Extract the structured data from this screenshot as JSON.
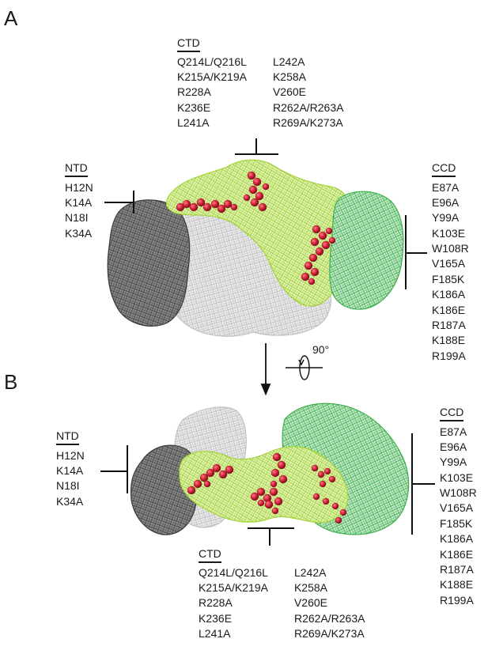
{
  "panels": {
    "A": {
      "letter": "A",
      "ctd": {
        "heading": "CTD",
        "col1": [
          "Q214L/Q216L",
          "K215A/K219A",
          "R228A",
          "K236E",
          "L241A"
        ],
        "col2": [
          "L242A",
          "K258A",
          "V260E",
          "R262A/R263A",
          "R269A/K273A"
        ]
      },
      "ntd": {
        "heading": "NTD",
        "items": [
          "H12N",
          "K14A",
          "N18I",
          "K34A"
        ]
      },
      "ccd": {
        "heading": "CCD",
        "items": [
          "E87A",
          "E96A",
          "Y99A",
          "K103E",
          "W108R",
          "V165A",
          "F185K",
          "K186A",
          "K186E",
          "R187A",
          "K188E",
          "R199A"
        ]
      }
    },
    "B": {
      "letter": "B",
      "ctd": {
        "heading": "CTD",
        "col1": [
          "Q214L/Q216L",
          "K215A/K219A",
          "R228A",
          "K236E",
          "L241A"
        ],
        "col2": [
          "L242A",
          "K258A",
          "V260E",
          "R262A/R263A",
          "R269A/K273A"
        ]
      },
      "ntd": {
        "heading": "NTD",
        "items": [
          "H12N",
          "K14A",
          "N18I",
          "K34A"
        ]
      },
      "ccd": {
        "heading": "CCD",
        "items": [
          "E87A",
          "E96A",
          "Y99A",
          "K103E",
          "W108R",
          "V165A",
          "F185K",
          "K186A",
          "K186E",
          "R187A",
          "K188E",
          "R199A"
        ]
      }
    }
  },
  "rotation": {
    "label": "90°"
  },
  "colors": {
    "ntd_mesh": "#4a4a4a",
    "ccd_partner_mesh": "#c4c4c4",
    "ctd_mesh": "#a6d63c",
    "ccd_mesh": "#3fb050",
    "residue_spheres": "#d6233a"
  }
}
